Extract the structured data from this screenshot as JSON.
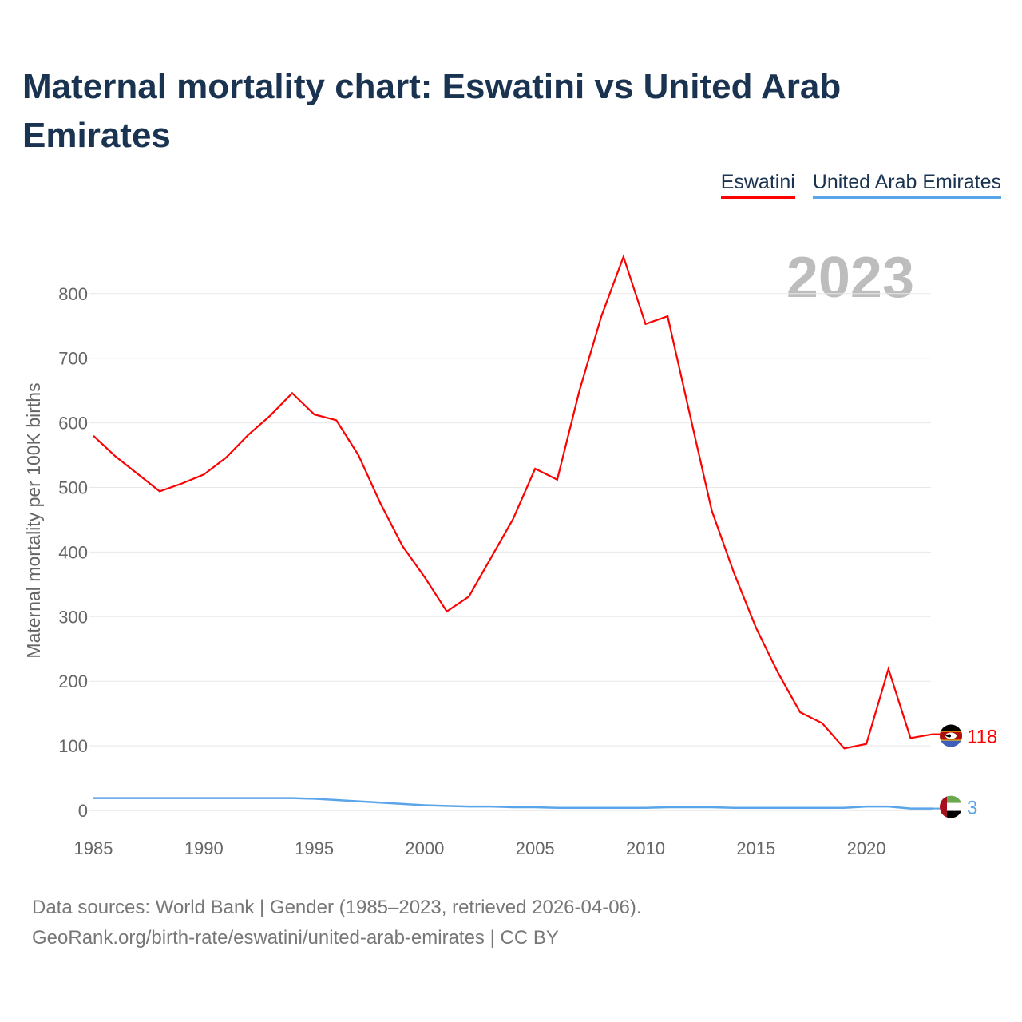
{
  "title": "Maternal mortality chart: Eswatini vs United Arab Emirates",
  "year_watermark": "2023",
  "footer": {
    "line1": "Data sources: World Bank | Gender (1985–2023, retrieved 2026-04-06).",
    "line2": "GeoRank.org/birth-rate/eswatini/united-arab-emirates | CC BY"
  },
  "chart_data": {
    "type": "line",
    "title": "Maternal mortality chart: Eswatini vs United Arab Emirates",
    "xlabel": "",
    "ylabel": "Maternal mortality per 100K births",
    "xlim": [
      1985,
      2023
    ],
    "ylim": [
      0,
      880
    ],
    "xticks": [
      1985,
      1990,
      1995,
      2000,
      2005,
      2010,
      2015,
      2020
    ],
    "yticks": [
      0,
      100,
      200,
      300,
      400,
      500,
      600,
      700,
      800
    ],
    "grid": true,
    "legend_position": "top-right",
    "x": [
      1985,
      1986,
      1987,
      1988,
      1989,
      1990,
      1991,
      1992,
      1993,
      1994,
      1995,
      1996,
      1997,
      1998,
      1999,
      2000,
      2001,
      2002,
      2003,
      2004,
      2005,
      2006,
      2007,
      2008,
      2009,
      2010,
      2011,
      2012,
      2013,
      2014,
      2015,
      2016,
      2017,
      2018,
      2019,
      2020,
      2021,
      2022,
      2023
    ],
    "series": [
      {
        "name": "Eswatini",
        "color": "#ff0000",
        "end_label": "118",
        "values": [
          580,
          548,
          521,
          494,
          506,
          520,
          546,
          581,
          611,
          646,
          613,
          604,
          550,
          475,
          409,
          361,
          308,
          331,
          391,
          451,
          529,
          512,
          649,
          765,
          857,
          753,
          765,
          614,
          464,
          368,
          283,
          213,
          152,
          135,
          96,
          103,
          219,
          112,
          118
        ]
      },
      {
        "name": "United Arab Emirates",
        "color": "#5aa5ea",
        "end_label": "3",
        "values": [
          19,
          19,
          19,
          19,
          19,
          19,
          19,
          19,
          19,
          19,
          18,
          16,
          14,
          12,
          10,
          8,
          7,
          6,
          6,
          5,
          5,
          4,
          4,
          4,
          4,
          4,
          5,
          5,
          5,
          4,
          4,
          4,
          4,
          4,
          4,
          6,
          6,
          3,
          3
        ]
      }
    ]
  }
}
